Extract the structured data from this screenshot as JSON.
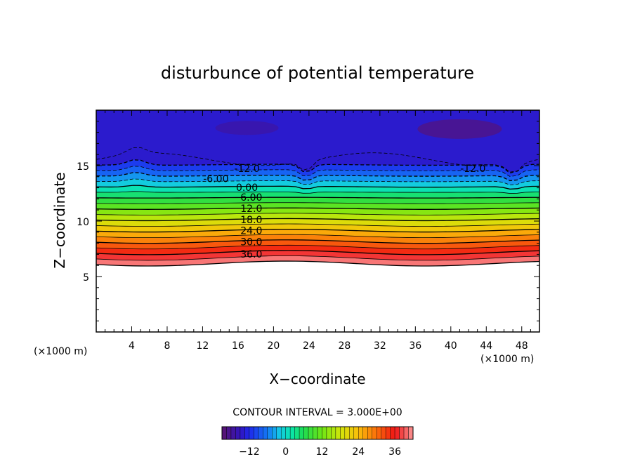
{
  "chart_data": {
    "type": "heatmap",
    "title": "disturbunce of potential temperature",
    "xlabel": "X−coordinate",
    "ylabel": "Z−coordinate",
    "x_unit": "(×1000 m)",
    "x_unit_right": "(×1000 m)",
    "xlim": [
      0,
      50
    ],
    "ylim": [
      0,
      20
    ],
    "x_ticks": [
      4,
      8,
      12,
      16,
      20,
      24,
      28,
      32,
      36,
      40,
      44,
      48
    ],
    "y_ticks": [
      5,
      10,
      15
    ],
    "contour_interval_label": "CONTOUR INTERVAL = 3.000E+00",
    "contour_labels": [
      {
        "text": "-12.0",
        "x": 17.0,
        "z": 14.8
      },
      {
        "text": "-12.0",
        "x": 42.5,
        "z": 14.8
      },
      {
        "text": "-6.00",
        "x": 13.5,
        "z": 13.9
      },
      {
        "text": "0.00",
        "x": 17.0,
        "z": 13.1
      },
      {
        "text": "6.00",
        "x": 17.5,
        "z": 12.2
      },
      {
        "text": "12.0",
        "x": 17.5,
        "z": 11.2
      },
      {
        "text": "18.0",
        "x": 17.5,
        "z": 10.2
      },
      {
        "text": "24.0",
        "x": 17.5,
        "z": 9.2
      },
      {
        "text": "30.0",
        "x": 17.5,
        "z": 8.2
      },
      {
        "text": "36.0",
        "x": 17.5,
        "z": 7.1
      }
    ],
    "colorbar": {
      "min": -21,
      "max": 42,
      "ticks": [
        -12,
        0,
        12,
        24,
        36
      ],
      "tick_labels": [
        "−12",
        "0",
        "12",
        "24",
        "36"
      ]
    },
    "colors": {
      "frame": "#000000"
    }
  }
}
